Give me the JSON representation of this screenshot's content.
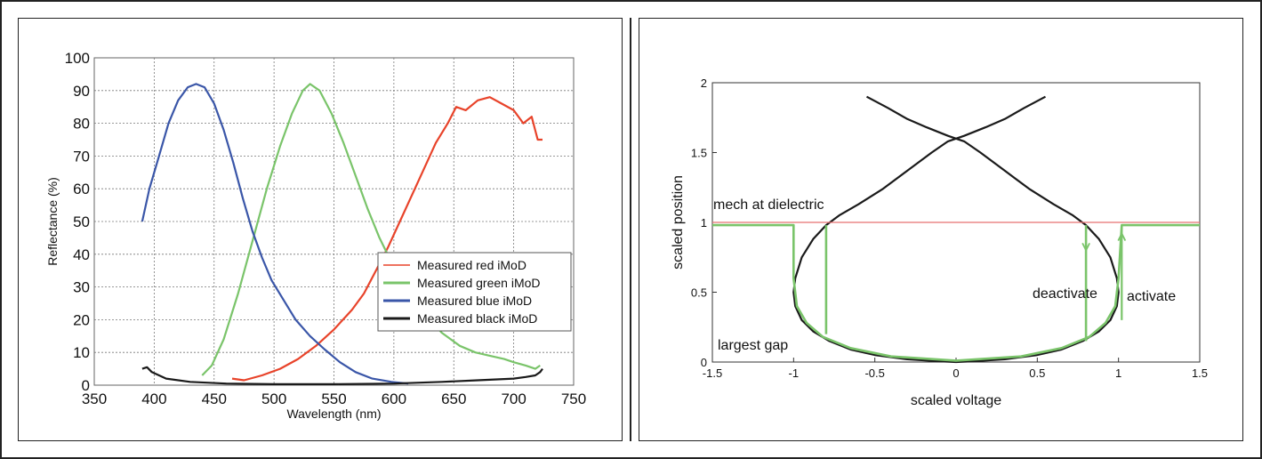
{
  "chart_data": [
    {
      "type": "line",
      "title": "",
      "xlabel": "Wavelength (nm)",
      "ylabel": "Reflectance (%)",
      "xlim": [
        350,
        750
      ],
      "ylim": [
        0,
        100
      ],
      "xticks": [
        350,
        400,
        450,
        500,
        550,
        600,
        650,
        700,
        750
      ],
      "yticks": [
        0,
        10,
        20,
        30,
        40,
        50,
        60,
        70,
        80,
        90,
        100
      ],
      "grid": true,
      "legend_position": "bottom-right",
      "series": [
        {
          "name": "Measured red iMoD",
          "color": "#e8432a",
          "points": [
            [
              465,
              2
            ],
            [
              475,
              1.5
            ],
            [
              490,
              3
            ],
            [
              505,
              5
            ],
            [
              520,
              8
            ],
            [
              535,
              12
            ],
            [
              550,
              17
            ],
            [
              565,
              23
            ],
            [
              575,
              28
            ],
            [
              585,
              35
            ],
            [
              595,
              42
            ],
            [
              605,
              50
            ],
            [
              615,
              58
            ],
            [
              625,
              66
            ],
            [
              635,
              74
            ],
            [
              645,
              80
            ],
            [
              652,
              85
            ],
            [
              660,
              84
            ],
            [
              670,
              87
            ],
            [
              680,
              88
            ],
            [
              690,
              86
            ],
            [
              700,
              84
            ],
            [
              708,
              80
            ],
            [
              715,
              82
            ],
            [
              720,
              75
            ],
            [
              724,
              75
            ]
          ]
        },
        {
          "name": "Measured green iMoD",
          "color": "#7ac46a",
          "points": [
            [
              440,
              3
            ],
            [
              448,
              6
            ],
            [
              458,
              14
            ],
            [
              470,
              28
            ],
            [
              482,
              44
            ],
            [
              494,
              60
            ],
            [
              505,
              73
            ],
            [
              515,
              83
            ],
            [
              524,
              90
            ],
            [
              530,
              92
            ],
            [
              538,
              90
            ],
            [
              548,
              83
            ],
            [
              558,
              74
            ],
            [
              568,
              64
            ],
            [
              578,
              54
            ],
            [
              588,
              45
            ],
            [
              600,
              36
            ],
            [
              612,
              29
            ],
            [
              625,
              22
            ],
            [
              640,
              16
            ],
            [
              655,
              12
            ],
            [
              668,
              10
            ],
            [
              680,
              9
            ],
            [
              692,
              8
            ],
            [
              700,
              7
            ],
            [
              710,
              6
            ],
            [
              718,
              5
            ],
            [
              722,
              6
            ]
          ]
        },
        {
          "name": "Measured blue iMoD",
          "color": "#3a56a8",
          "points": [
            [
              390,
              50
            ],
            [
              396,
              60
            ],
            [
              404,
              70
            ],
            [
              412,
              80
            ],
            [
              420,
              87
            ],
            [
              428,
              91
            ],
            [
              435,
              92
            ],
            [
              442,
              91
            ],
            [
              450,
              86
            ],
            [
              458,
              78
            ],
            [
              466,
              68
            ],
            [
              474,
              57
            ],
            [
              482,
              47
            ],
            [
              490,
              39
            ],
            [
              498,
              32
            ],
            [
              508,
              26
            ],
            [
              518,
              20
            ],
            [
              530,
              15
            ],
            [
              542,
              11
            ],
            [
              555,
              7
            ],
            [
              568,
              4
            ],
            [
              582,
              2
            ],
            [
              598,
              1
            ],
            [
              612,
              0.5
            ]
          ]
        },
        {
          "name": "Measured black iMoD",
          "color": "#1a1a1a",
          "points": [
            [
              390,
              5
            ],
            [
              394,
              5.5
            ],
            [
              398,
              4
            ],
            [
              410,
              2
            ],
            [
              430,
              1
            ],
            [
              460,
              0.5
            ],
            [
              500,
              0.3
            ],
            [
              550,
              0.3
            ],
            [
              600,
              0.5
            ],
            [
              640,
              1
            ],
            [
              670,
              1.5
            ],
            [
              700,
              2
            ],
            [
              710,
              2.5
            ],
            [
              718,
              3
            ],
            [
              722,
              4
            ],
            [
              724,
              5
            ]
          ]
        }
      ]
    },
    {
      "type": "line",
      "title": "",
      "xlabel": "scaled voltage",
      "ylabel": "scaled position",
      "xlim": [
        -1.5,
        1.5
      ],
      "ylim": [
        0,
        2
      ],
      "xticks": [
        -1.5,
        -1,
        -0.5,
        0,
        0.5,
        1,
        1.5
      ],
      "yticks": [
        0,
        0.5,
        1,
        1.5,
        2
      ],
      "grid": false,
      "annotations": [
        "mech at dielectric",
        "deactivate",
        "activate",
        "largest gap"
      ],
      "series": [
        {
          "color": "#1a1a1a",
          "points": [
            [
              -0.55,
              1.9
            ],
            [
              -0.42,
              1.82
            ],
            [
              -0.3,
              1.74
            ],
            [
              -0.18,
              1.68
            ],
            [
              -0.05,
              1.62
            ],
            [
              0.05,
              1.58
            ],
            [
              0.15,
              1.5
            ],
            [
              0.3,
              1.37
            ],
            [
              0.45,
              1.24
            ],
            [
              0.6,
              1.13
            ],
            [
              0.72,
              1.05
            ],
            [
              0.8,
              0.98
            ],
            [
              0.88,
              0.88
            ],
            [
              0.95,
              0.75
            ],
            [
              0.99,
              0.6
            ],
            [
              1.0,
              0.5
            ],
            [
              0.99,
              0.4
            ],
            [
              0.95,
              0.3
            ],
            [
              0.88,
              0.22
            ],
            [
              0.78,
              0.15
            ],
            [
              0.65,
              0.09
            ],
            [
              0.5,
              0.05
            ],
            [
              0.3,
              0.02
            ],
            [
              0.1,
              0.005
            ],
            [
              0,
              0
            ],
            [
              -0.1,
              0.005
            ],
            [
              -0.3,
              0.02
            ],
            [
              -0.5,
              0.05
            ],
            [
              -0.65,
              0.09
            ],
            [
              -0.78,
              0.15
            ],
            [
              -0.88,
              0.22
            ],
            [
              -0.95,
              0.3
            ],
            [
              -0.99,
              0.4
            ],
            [
              -1.0,
              0.5
            ],
            [
              -0.99,
              0.6
            ],
            [
              -0.95,
              0.75
            ],
            [
              -0.88,
              0.88
            ],
            [
              -0.8,
              0.98
            ],
            [
              -0.72,
              1.05
            ],
            [
              -0.6,
              1.13
            ],
            [
              -0.45,
              1.24
            ],
            [
              -0.3,
              1.37
            ],
            [
              -0.15,
              1.5
            ],
            [
              -0.05,
              1.58
            ],
            [
              0.05,
              1.62
            ],
            [
              0.18,
              1.68
            ],
            [
              0.3,
              1.74
            ],
            [
              0.42,
              1.82
            ],
            [
              0.55,
              1.9
            ]
          ]
        },
        {
          "color": "#e87070",
          "points": [
            [
              -1.5,
              1.0
            ],
            [
              1.5,
              1.0
            ]
          ]
        },
        {
          "color": "#7ac46a",
          "points": [
            [
              -1.5,
              0.98
            ],
            [
              -1.0,
              0.98
            ],
            [
              -1.0,
              0.6
            ],
            [
              -0.98,
              0.4
            ],
            [
              -0.92,
              0.28
            ],
            [
              -0.82,
              0.18
            ],
            [
              -0.65,
              0.1
            ],
            [
              -0.4,
              0.04
            ],
            [
              0,
              0.01
            ],
            [
              0.4,
              0.04
            ],
            [
              0.65,
              0.1
            ],
            [
              0.82,
              0.18
            ],
            [
              0.92,
              0.28
            ],
            [
              0.98,
              0.4
            ],
            [
              1.0,
              0.6
            ],
            [
              1.02,
              0.98
            ],
            [
              1.5,
              0.98
            ]
          ]
        },
        {
          "color": "#7ac46a",
          "points": [
            [
              -0.8,
              0.98
            ],
            [
              -0.8,
              0.2
            ]
          ]
        },
        {
          "color": "#7ac46a",
          "points": [
            [
              0.8,
              0.98
            ],
            [
              0.8,
              0.15
            ]
          ]
        },
        {
          "color": "#7ac46a",
          "points": [
            [
              1.02,
              0.98
            ],
            [
              1.02,
              0.3
            ]
          ]
        }
      ]
    }
  ]
}
